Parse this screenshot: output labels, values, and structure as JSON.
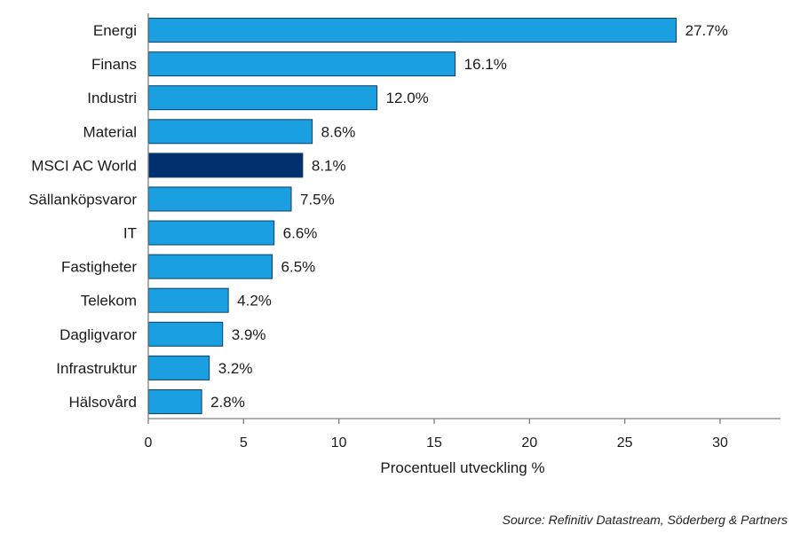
{
  "chart_data": {
    "type": "bar",
    "orientation": "horizontal",
    "categories": [
      "Energi",
      "Finans",
      "Industri",
      "Material",
      "MSCI AC World",
      "Sällanköpsvaror",
      "IT",
      "Fastigheter",
      "Telekom",
      "Dagligvaror",
      "Infrastruktur",
      "Hälsovård"
    ],
    "values": [
      27.7,
      16.1,
      12.0,
      8.6,
      8.1,
      7.5,
      6.6,
      6.5,
      4.2,
      3.9,
      3.2,
      2.8
    ],
    "value_labels": [
      "27.7%",
      "16.1%",
      "12.0%",
      "8.6%",
      "8.1%",
      "7.5%",
      "6.6%",
      "6.5%",
      "4.2%",
      "3.9%",
      "3.2%",
      "2.8%"
    ],
    "highlight_category": "MSCI AC World",
    "xlabel": "Procentuell utveckling %",
    "ylabel": "",
    "xlim": [
      0,
      33
    ],
    "xticks": [
      0,
      5,
      10,
      15,
      20,
      25,
      30
    ],
    "grid": false,
    "legend": "none",
    "colors": {
      "bar": "#1aa0e0",
      "bar_highlight": "#00306e",
      "bar_edge": "#0b3f66",
      "axis": "#808080"
    }
  },
  "source": "Source: Refinitiv Datastream, Söderberg & Partners"
}
